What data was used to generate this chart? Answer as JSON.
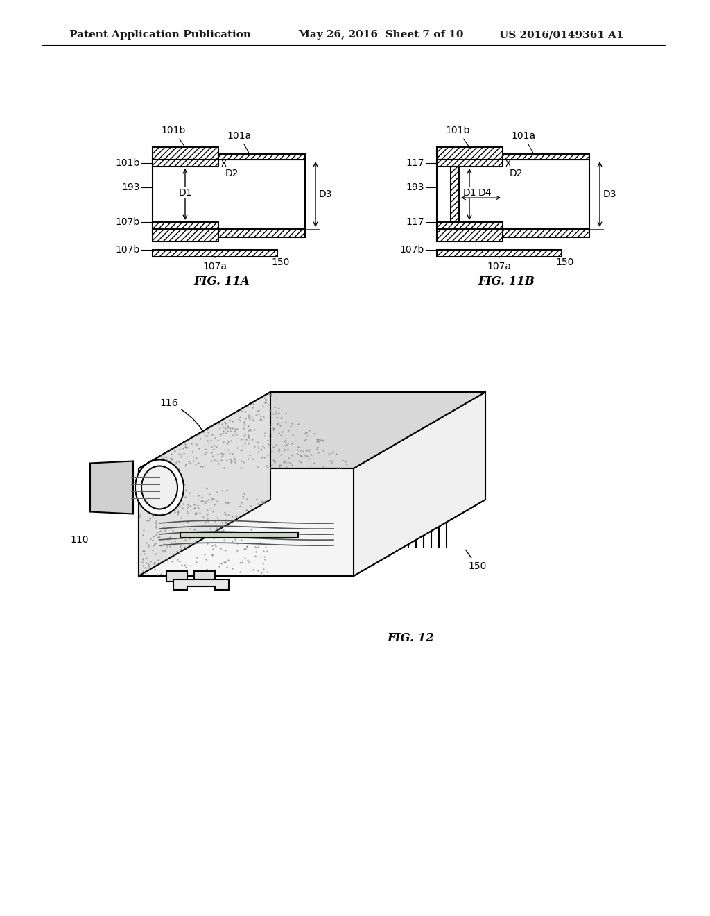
{
  "header_left": "Patent Application Publication",
  "header_mid": "May 26, 2016  Sheet 7 of 10",
  "header_right": "US 2016/0149361 A1",
  "fig11a_label": "FIG. 11A",
  "fig11b_label": "FIG. 11B",
  "fig12_label": "FIG. 12",
  "bg_color": "#ffffff",
  "line_color": "#000000",
  "hatch_color": "#000000",
  "text_color": "#1a1a1a",
  "font_size_header": 11,
  "font_size_label": 10,
  "font_size_dim": 9
}
